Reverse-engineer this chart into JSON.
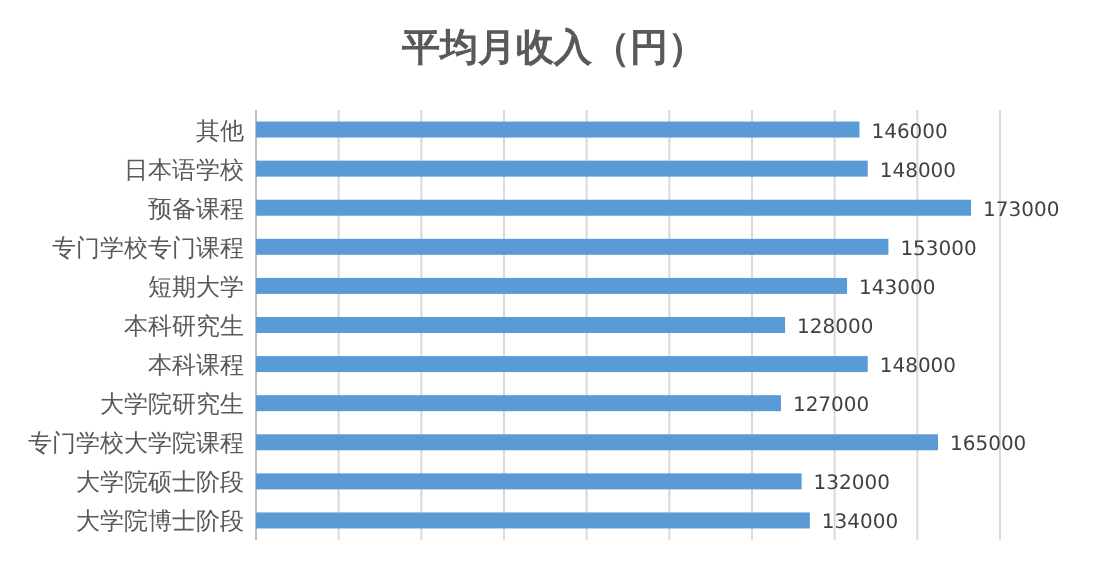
{
  "chart_data": {
    "type": "bar",
    "orientation": "horizontal",
    "title": "平均月收入（円）",
    "categories": [
      "其他",
      "日本语学校",
      "预备课程",
      "专门学校专门课程",
      "短期大学",
      "本科研究生",
      "本科课程",
      "大学院研究生",
      "专门学校大学院课程",
      "大学院硕士阶段",
      "大学院博士阶段"
    ],
    "values": [
      146000,
      148000,
      173000,
      153000,
      143000,
      128000,
      148000,
      127000,
      165000,
      132000,
      134000
    ],
    "color": "#5b9bd5",
    "xlim": [
      0,
      180000
    ],
    "xticks": [
      {
        "value": 0,
        "label": null
      },
      {
        "value": 20000,
        "label": null
      },
      {
        "value": 40000,
        "label": null
      },
      {
        "value": 60000,
        "label": null
      },
      {
        "value": 80000,
        "label": null
      },
      {
        "value": 100000,
        "label": null
      },
      {
        "value": 120000,
        "label": null
      },
      {
        "value": 140000,
        "label": null
      },
      {
        "value": 160000,
        "label": null
      },
      {
        "value": 180000,
        "label": null
      }
    ],
    "grid": "x",
    "tick_labels": "y",
    "data_labels": true
  }
}
